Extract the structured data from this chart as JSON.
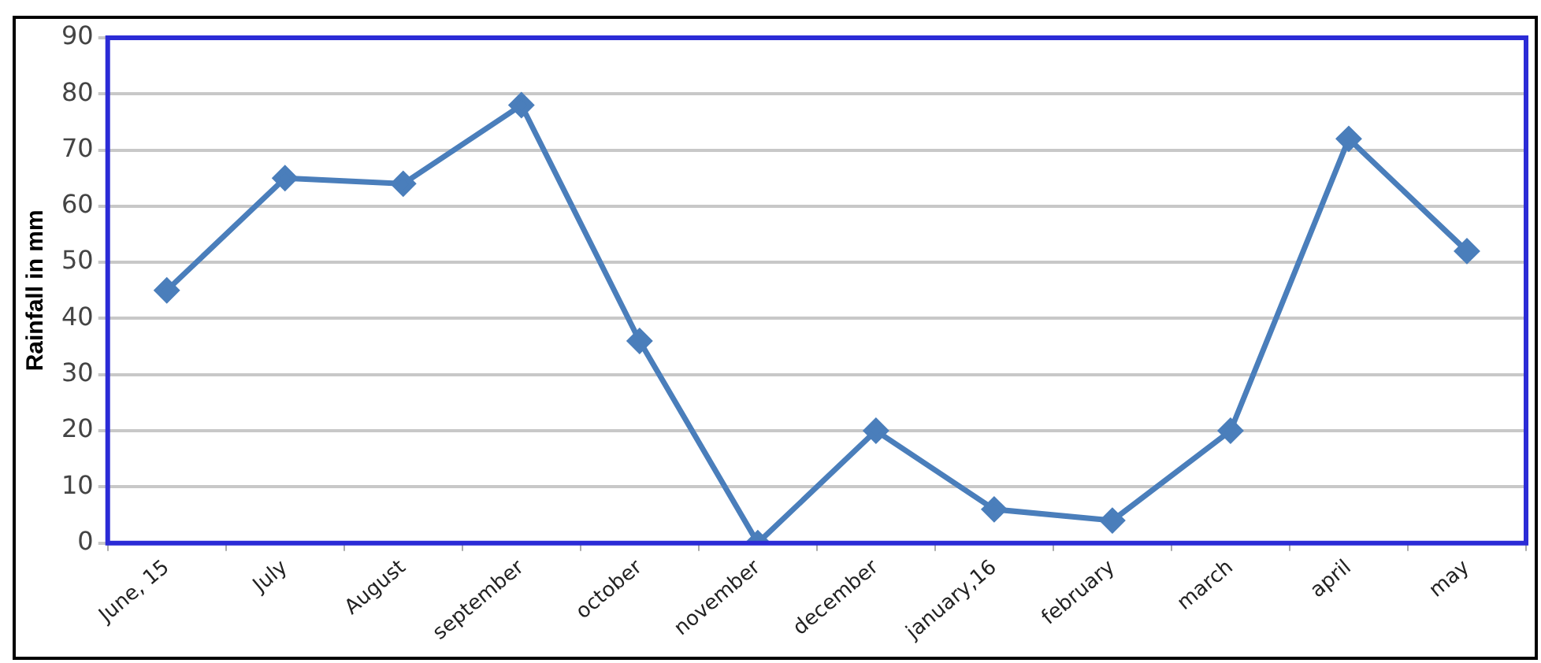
{
  "chart_data": {
    "type": "line",
    "ylabel": "Rainfall in mm",
    "categories": [
      "June, 15",
      "July",
      "August",
      "september",
      "october",
      "november",
      "december",
      "january,16",
      "february",
      "march",
      "april",
      "may"
    ],
    "series": [
      {
        "color": "#4a7ebb",
        "values": [
          45,
          65,
          64,
          78,
          36,
          0,
          20,
          6,
          4,
          20,
          72,
          52
        ]
      }
    ],
    "ylim": [
      0,
      90
    ],
    "yticks": [
      0,
      10,
      20,
      30,
      40,
      50,
      60,
      70,
      80,
      90
    ],
    "grid": "y",
    "legend": false,
    "marker": "diamond",
    "line_style": "solid"
  }
}
